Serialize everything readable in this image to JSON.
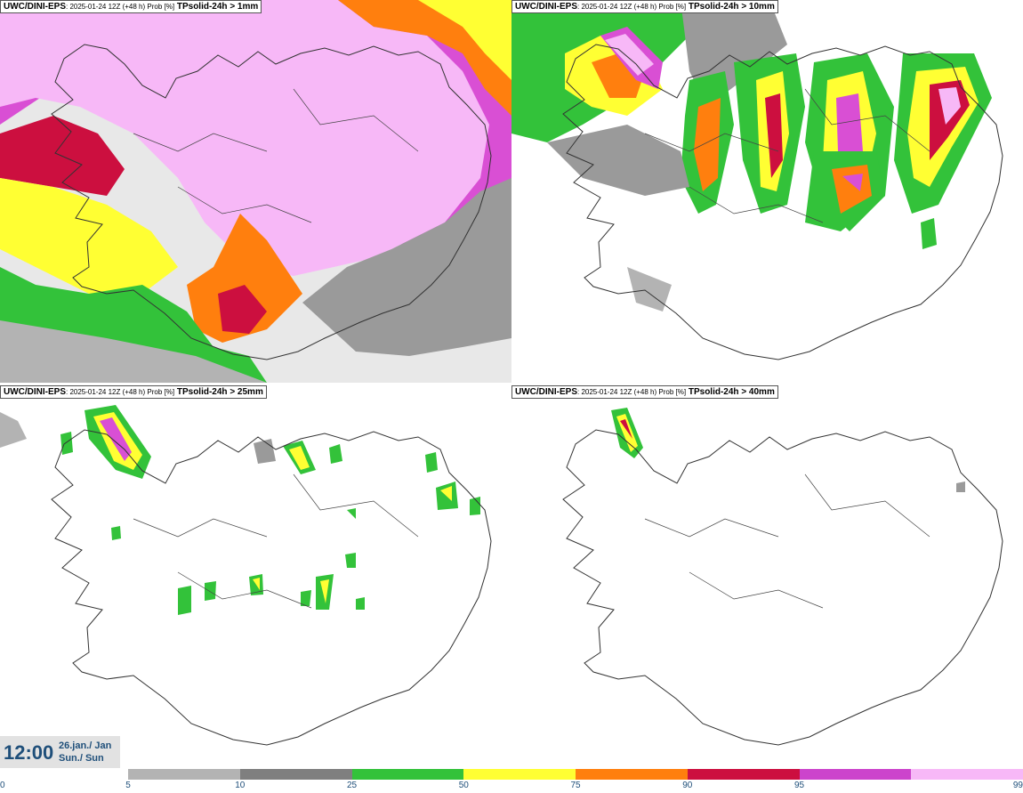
{
  "panels": [
    {
      "source": "UWC/DINI-EPS",
      "meta": ": 2025-01-24 12Z (+48 h) Prob [%]",
      "variable": "TPsolid-24h > 1mm"
    },
    {
      "source": "UWC/DINI-EPS",
      "meta": ": 2025-01-24 12Z (+48 h) Prob [%]",
      "variable": "TPsolid-24h > 10mm"
    },
    {
      "source": "UWC/DINI-EPS",
      "meta": ": 2025-01-24 12Z (+48 h) Prob [%]",
      "variable": "TPsolid-24h > 25mm"
    },
    {
      "source": "UWC/DINI-EPS",
      "meta": ": 2025-01-24 12Z (+48 h) Prob [%]",
      "variable": "TPsolid-24h > 40mm"
    }
  ],
  "valid_time": {
    "time": "12:00",
    "date_line1": "26.jan./ Jan",
    "date_line2": "Sun./ Sun"
  },
  "legend": {
    "ticks": [
      "0",
      "5",
      "10",
      "25",
      "50",
      "75",
      "90",
      "95",
      "99"
    ],
    "colors": [
      "#b3b3b3",
      "#7f7f7f",
      "#33c23a",
      "#ffff33",
      "#ff7f0e",
      "#cc0f3f",
      "#cc44cc",
      "#f7b8f7"
    ]
  }
}
